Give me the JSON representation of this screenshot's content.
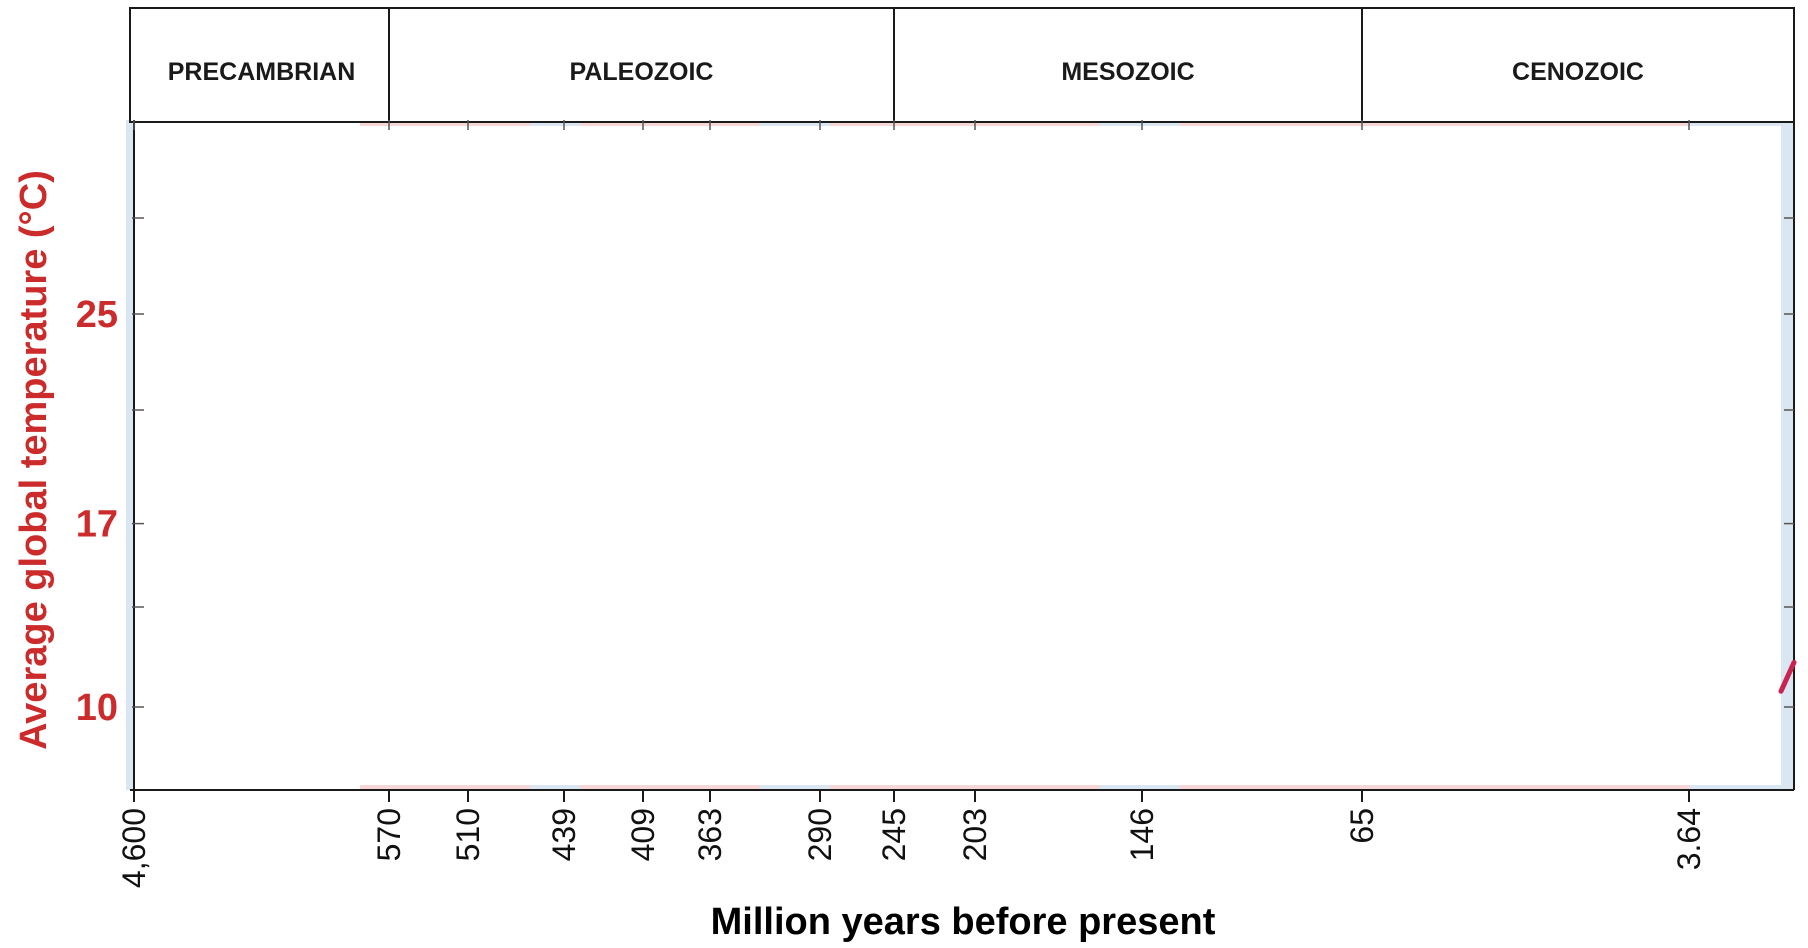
{
  "chart_data": {
    "type": "line",
    "title": "",
    "xlabel": "Million years before present",
    "ylabel": "Average global temperature (°C)",
    "eras": [
      "PRECAMBRIAN",
      "PALEOZOIC",
      "MESOZOIC",
      "CENOZOIC"
    ],
    "x_tick_labels": [
      "4,600",
      "570",
      "510",
      "439",
      "409",
      "363",
      "290",
      "245",
      "203",
      "146",
      "65",
      "3.64"
    ],
    "y_ticks": [
      10,
      17,
      25
    ],
    "y_tick_labels": [
      "10",
      "17",
      "25"
    ],
    "ylim": [
      7,
      32
    ],
    "series": [
      {
        "x": [
          "0.3",
          "0"
        ],
        "y": [
          10.6,
          11.7
        ],
        "color": "#c8244f"
      }
    ],
    "grid": false,
    "colors": {
      "axis_text": "#cc2b2b",
      "line": "#c8244f",
      "warm_band": "#f7d6d6",
      "cool_band": "#dbe6f3",
      "frame": "#1a1a1a"
    }
  }
}
